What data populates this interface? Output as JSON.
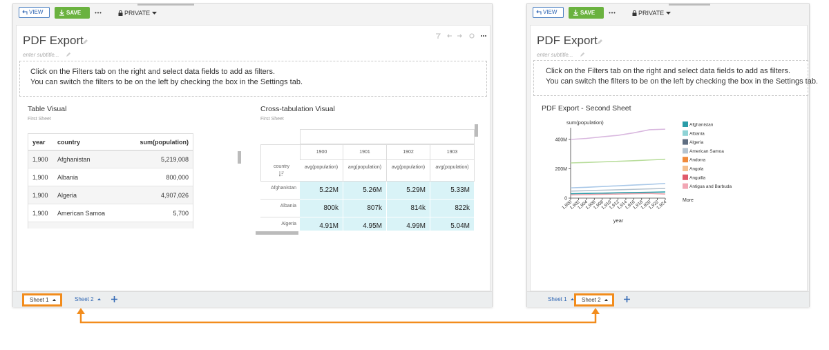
{
  "panels": [
    {
      "toolbar": {
        "view": "VIEW",
        "save": "SAVE",
        "privacy": "PRIVATE"
      },
      "title": "PDF Export",
      "subtitle": "enter subtitle...",
      "info": [
        "Click on the Filters tab on the right and select data fields to add as filters.",
        "You can switch the filters to be on the left by checking the box in the Settings tab."
      ],
      "tabs": [
        "Sheet 1",
        "Sheet 2"
      ],
      "highlighted_tab": 0,
      "table_visual": {
        "title": "Table Visual",
        "subtitle": "First Sheet",
        "columns": [
          "year",
          "country",
          "sum(population)"
        ],
        "rows": [
          [
            "1,900",
            "Afghanistan",
            "5,219,008"
          ],
          [
            "1,900",
            "Albania",
            "800,000"
          ],
          [
            "1,900",
            "Algeria",
            "4,907,026"
          ],
          [
            "1,900",
            "American Samoa",
            "5,700"
          ]
        ]
      },
      "crosstab_visual": {
        "title": "Cross-tabulation Visual",
        "subtitle": "First Sheet",
        "row_header": "country",
        "columns": [
          "1900",
          "1901",
          "1902",
          "1903"
        ],
        "measure": "avg(population)",
        "rows": [
          {
            "label": "Afghanistan",
            "cells": [
              "5.22M",
              "5.26M",
              "5.29M",
              "5.33M"
            ]
          },
          {
            "label": "Albania",
            "cells": [
              "800k",
              "807k",
              "814k",
              "822k"
            ]
          },
          {
            "label": "Algeria",
            "cells": [
              "4.91M",
              "4.95M",
              "4.99M",
              "5.04M"
            ]
          }
        ]
      }
    },
    {
      "toolbar": {
        "view": "VIEW",
        "save": "SAVE",
        "privacy": "PRIVATE"
      },
      "title": "PDF Export",
      "subtitle": "enter subtitle...",
      "info": [
        "Click on the Filters tab on the right and select data fields to add as filters.",
        "You can switch the filters to be on the left by checking the box in the Settings tab."
      ],
      "tabs": [
        "Sheet 1",
        "Sheet 2"
      ],
      "highlighted_tab": 1
    }
  ],
  "chart_data": {
    "type": "line",
    "title": "PDF Export - Second Sheet",
    "y_label": "sum(population)",
    "x_label": "year",
    "x": [
      1900,
      1904,
      1908,
      1912,
      1916,
      1920,
      1924
    ],
    "series": [
      {
        "color": "#d9b8df",
        "values": [
          400000000,
          407000000,
          418000000,
          428000000,
          445000000,
          466000000,
          470000000
        ]
      },
      {
        "color": "#b9dd9c",
        "values": [
          240000000,
          243000000,
          247000000,
          251000000,
          255000000,
          260000000,
          265000000
        ]
      },
      {
        "color": "#a9c8e8",
        "values": [
          70000000,
          74000000,
          79000000,
          84000000,
          89000000,
          94000000,
          100000000
        ]
      },
      {
        "color": "#b5c4d1",
        "values": [
          48000000,
          51000000,
          54000000,
          57000000,
          60000000,
          63000000,
          66000000
        ]
      },
      {
        "color": "#2a9ca8",
        "values": [
          30000000,
          32000000,
          34000000,
          36000000,
          38000000,
          40000000,
          42000000
        ]
      },
      {
        "color": "#eaa2ac",
        "values": [
          22000000,
          24000000,
          26000000,
          28000000,
          30000000,
          32000000,
          28000000
        ]
      }
    ],
    "xlim": [
      1900,
      1924
    ],
    "ylim": [
      0,
      480000000
    ],
    "xticks": [
      {
        "value": 1900,
        "label": "1,900"
      },
      {
        "value": 1902,
        "label": "1,902"
      },
      {
        "value": 1904,
        "label": "1,904"
      },
      {
        "value": 1906,
        "label": "1,906"
      },
      {
        "value": 1908,
        "label": "1,908"
      },
      {
        "value": 1910,
        "label": "1,910"
      },
      {
        "value": 1912,
        "label": "1,912"
      },
      {
        "value": 1914,
        "label": "1,914"
      },
      {
        "value": 1916,
        "label": "1,916"
      },
      {
        "value": 1918,
        "label": "1,918"
      },
      {
        "value": 1920,
        "label": "1,920"
      },
      {
        "value": 1922,
        "label": "1,922"
      },
      {
        "value": 1924,
        "label": "1,924"
      }
    ],
    "yticks": [
      0,
      {
        "value": 200000000,
        "label": "200M"
      },
      {
        "value": 400000000,
        "label": "400M"
      }
    ],
    "legend": [
      {
        "name": "Afghanistan",
        "color": "#2a9ca8"
      },
      {
        "name": "Albania",
        "color": "#8fd3d6"
      },
      {
        "name": "Algeria",
        "color": "#5e6e82"
      },
      {
        "name": "American Samoa",
        "color": "#b5c4d1"
      },
      {
        "name": "Andorra",
        "color": "#f08a3c"
      },
      {
        "name": "Angola",
        "color": "#f5c08f"
      },
      {
        "name": "Anguilla",
        "color": "#e05a6a"
      },
      {
        "name": "Antigua and Barbuda",
        "color": "#f2a7b5"
      }
    ],
    "legend_more": "More"
  }
}
